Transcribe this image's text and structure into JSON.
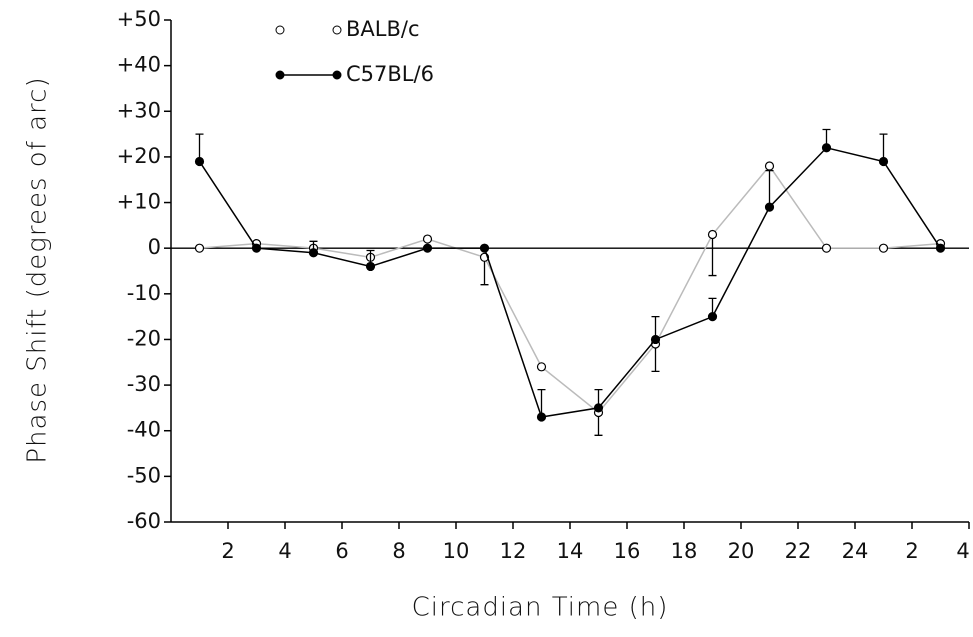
{
  "chart_data": {
    "type": "line",
    "y_label": "Phase Shift (degrees of arc)",
    "x_label": "Circadian Time (h)",
    "x": [
      1,
      3,
      5,
      7,
      9,
      11,
      13,
      15,
      17,
      19,
      21,
      23,
      25,
      27
    ],
    "series": [
      {
        "name": "BALB/c",
        "color": "#000000",
        "line_color": "#bbbbbb",
        "marker": "open",
        "values": [
          0,
          1,
          0,
          -2,
          2,
          -2,
          -26,
          -36,
          -21,
          3,
          18,
          0,
          0,
          1
        ],
        "errors": [
          null,
          null,
          null,
          null,
          null,
          6,
          null,
          5,
          6,
          9,
          null,
          null,
          null,
          null
        ]
      },
      {
        "name": "C57BL/6",
        "color": "#000000",
        "line_color": "#000000",
        "marker": "filled",
        "values": [
          19,
          0,
          -1,
          -4,
          0,
          0,
          -37,
          -35,
          -20,
          -15,
          9,
          22,
          19,
          0
        ],
        "errors": [
          6,
          null,
          2.5,
          3.5,
          null,
          null,
          6,
          4,
          5,
          4,
          8,
          4,
          6,
          null
        ]
      }
    ],
    "xlim": [
      0,
      28
    ],
    "xticks": [
      2,
      4,
      6,
      8,
      10,
      12,
      14,
      16,
      18,
      20,
      22,
      24,
      {
        "value": 26,
        "label": "2"
      },
      {
        "value": 28,
        "label": "4"
      }
    ],
    "ylim": [
      -60,
      50
    ],
    "yticks": [
      {
        "value": 50,
        "label": "+50"
      },
      {
        "value": 40,
        "label": "+40"
      },
      {
        "value": 30,
        "label": "+30"
      },
      {
        "value": 20,
        "label": "+20"
      },
      {
        "value": 10,
        "label": "+10"
      },
      0,
      -10,
      -20,
      -30,
      -40,
      -50,
      -60
    ],
    "zero_line": true
  }
}
